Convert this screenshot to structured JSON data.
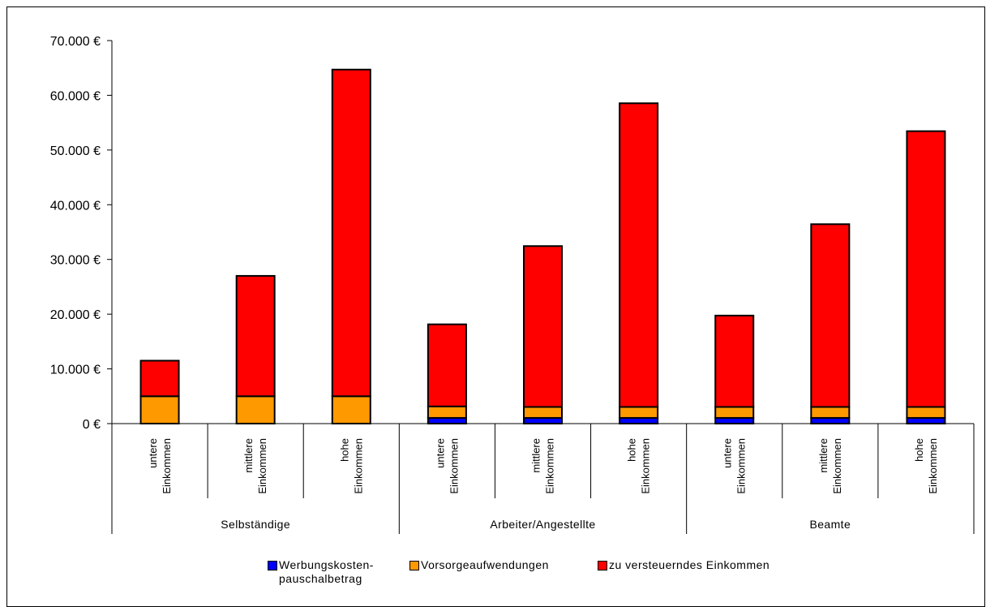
{
  "chart_data": {
    "type": "bar",
    "stacked": true,
    "y_ticks": [
      "70.000 €",
      "60.000 €",
      "50.000 €",
      "40.000 €",
      "30.000 €",
      "20.000 €",
      "10.000 €",
      "0 €"
    ],
    "ylim": [
      0,
      70000
    ],
    "groups": [
      {
        "name": "Selbständige",
        "categories": [
          [
            "untere",
            "Einkommen"
          ],
          [
            "mittlere",
            "Einkommen"
          ],
          [
            "hohe",
            "Einkommen"
          ]
        ]
      },
      {
        "name": "Arbeiter/Angestellte",
        "categories": [
          [
            "untere",
            "Einkommen"
          ],
          [
            "mittlere",
            "Einkommen"
          ],
          [
            "hohe",
            "Einkommen"
          ]
        ]
      },
      {
        "name": "Beamte",
        "categories": [
          [
            "untere",
            "Einkommen"
          ],
          [
            "mittlere",
            "Einkommen"
          ],
          [
            "hohe",
            "Einkommen"
          ]
        ]
      }
    ],
    "series": [
      {
        "name": "Werbungskosten-pauschalbetrag",
        "legend_lines": [
          "Werbungskosten-",
          "pauschalbetrag"
        ],
        "color": "#0000ff",
        "values": [
          0,
          0,
          0,
          1044,
          1044,
          1044,
          1044,
          1044,
          1044
        ]
      },
      {
        "name": "Vorsorgeaufwendungen",
        "legend_lines": [
          "Vorsorgeaufwendungen"
        ],
        "color": "#ff9900",
        "values": [
          5000,
          5000,
          5000,
          2100,
          2000,
          2000,
          2000,
          2000,
          2000
        ]
      },
      {
        "name": "zu versteuerndes Einkommen",
        "legend_lines": [
          "zu versteuerndes Einkommen"
        ],
        "color": "#ff0000",
        "values": [
          6500,
          22000,
          59700,
          15000,
          29400,
          55500,
          16700,
          33400,
          50400
        ]
      }
    ],
    "grid": false,
    "legend_position": "bottom"
  }
}
